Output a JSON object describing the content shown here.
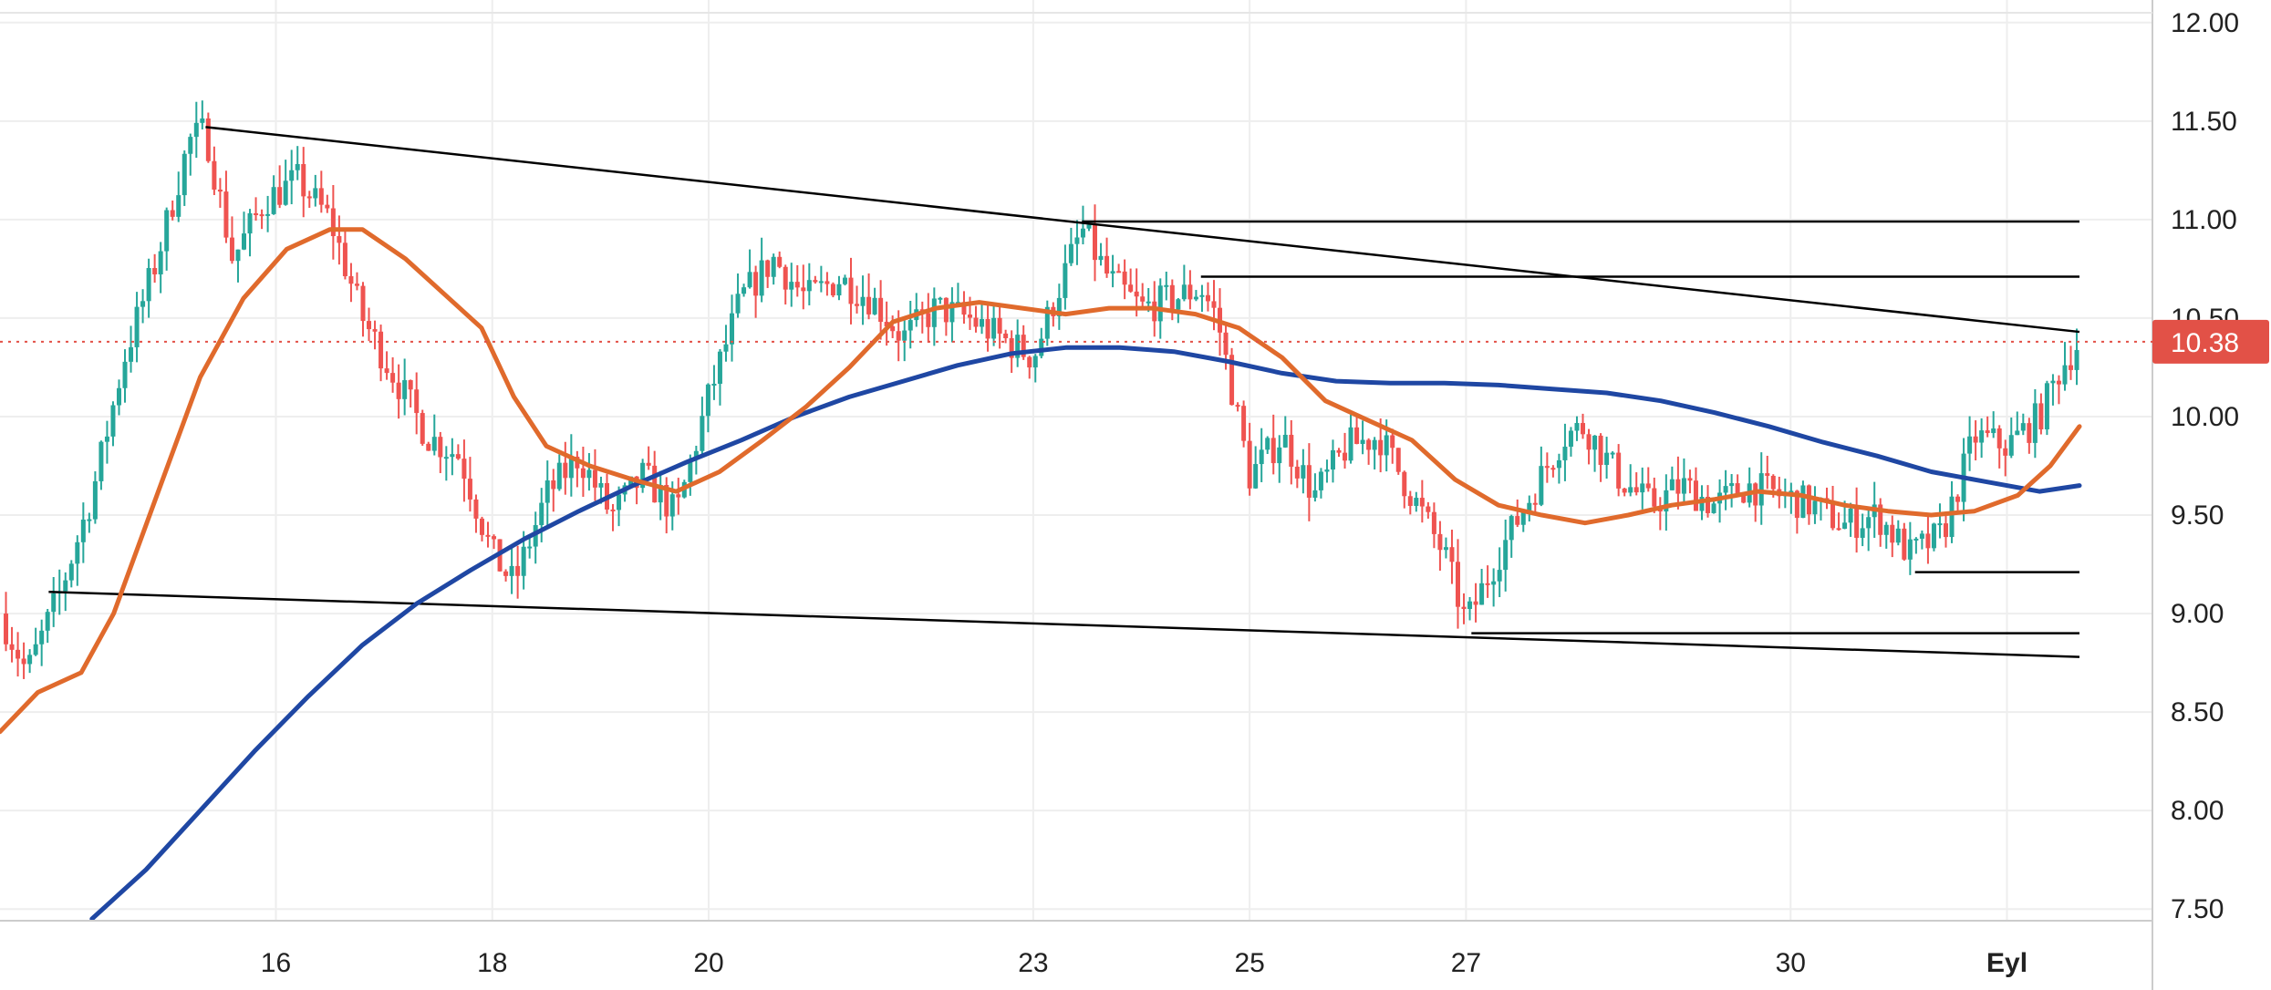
{
  "chart_data": {
    "type": "candlestick",
    "title": "",
    "xlabel": "",
    "ylabel": "",
    "ylim": [
      7.45,
      12.05
    ],
    "grid": true,
    "legend": "none",
    "y_ticks": [
      "7.50",
      "8.00",
      "8.50",
      "9.00",
      "9.50",
      "10.00",
      "10.50",
      "11.00",
      "11.50",
      "12.00"
    ],
    "x_ticks": [
      {
        "label": "16",
        "day": 16
      },
      {
        "label": "18",
        "day": 18
      },
      {
        "label": "20",
        "day": 20
      },
      {
        "label": "23",
        "day": 23
      },
      {
        "label": "25",
        "day": 25
      },
      {
        "label": "27",
        "day": 27
      },
      {
        "label": "30",
        "day": 30
      },
      {
        "label": "Eyl",
        "day": 32,
        "bold": true
      }
    ],
    "x_range_days": [
      13.45,
      32.67
    ],
    "last_price": {
      "value": 10.38,
      "label": "10.38"
    },
    "colors": {
      "up": "#26a69a",
      "down": "#ef5350",
      "ma_fast": "#e06a2c",
      "ma_slow": "#1f47a3",
      "trendline": "#000000",
      "price_tag": "#e25147",
      "grid": "#eeeeee"
    },
    "price_path": [
      [
        13.45,
        9.0
      ],
      [
        13.7,
        8.7
      ],
      [
        14.0,
        9.1
      ],
      [
        14.3,
        9.6
      ],
      [
        14.6,
        10.3
      ],
      [
        14.9,
        10.8
      ],
      [
        15.2,
        11.4
      ],
      [
        15.35,
        11.45
      ],
      [
        15.6,
        10.8
      ],
      [
        15.9,
        11.1
      ],
      [
        16.2,
        11.2
      ],
      [
        16.5,
        11.0
      ],
      [
        16.8,
        10.5
      ],
      [
        17.1,
        10.2
      ],
      [
        17.4,
        9.9
      ],
      [
        17.7,
        9.8
      ],
      [
        18.0,
        9.3
      ],
      [
        18.2,
        9.15
      ],
      [
        18.5,
        9.6
      ],
      [
        18.8,
        9.8
      ],
      [
        19.1,
        9.5
      ],
      [
        19.4,
        9.7
      ],
      [
        19.7,
        9.5
      ],
      [
        20.0,
        10.1
      ],
      [
        20.3,
        10.6
      ],
      [
        20.6,
        10.8
      ],
      [
        20.9,
        10.6
      ],
      [
        21.2,
        10.7
      ],
      [
        21.5,
        10.6
      ],
      [
        21.8,
        10.4
      ],
      [
        22.1,
        10.55
      ],
      [
        22.4,
        10.5
      ],
      [
        22.7,
        10.4
      ],
      [
        23.0,
        10.3
      ],
      [
        23.2,
        10.6
      ],
      [
        23.45,
        10.95
      ],
      [
        23.7,
        10.7
      ],
      [
        24.0,
        10.55
      ],
      [
        24.3,
        10.6
      ],
      [
        24.55,
        10.65
      ],
      [
        24.7,
        10.5
      ],
      [
        25.0,
        9.7
      ],
      [
        25.3,
        9.9
      ],
      [
        25.6,
        9.6
      ],
      [
        25.9,
        9.85
      ],
      [
        26.2,
        9.9
      ],
      [
        26.5,
        9.6
      ],
      [
        26.8,
        9.3
      ],
      [
        27.0,
        8.95
      ],
      [
        27.3,
        9.3
      ],
      [
        27.6,
        9.6
      ],
      [
        27.9,
        9.9
      ],
      [
        28.1,
        9.95
      ],
      [
        28.4,
        9.7
      ],
      [
        28.7,
        9.55
      ],
      [
        29.0,
        9.65
      ],
      [
        29.3,
        9.55
      ],
      [
        29.6,
        9.65
      ],
      [
        29.9,
        9.6
      ],
      [
        30.2,
        9.55
      ],
      [
        30.5,
        9.45
      ],
      [
        30.8,
        9.5
      ],
      [
        31.1,
        9.3
      ],
      [
        31.4,
        9.4
      ],
      [
        31.7,
        9.9
      ],
      [
        32.0,
        9.85
      ],
      [
        32.3,
        10.0
      ],
      [
        32.5,
        10.25
      ],
      [
        32.67,
        10.38
      ]
    ],
    "ma_fast": [
      [
        13.45,
        8.4
      ],
      [
        13.8,
        8.6
      ],
      [
        14.2,
        8.7
      ],
      [
        14.5,
        9.0
      ],
      [
        14.9,
        9.6
      ],
      [
        15.3,
        10.2
      ],
      [
        15.7,
        10.6
      ],
      [
        16.1,
        10.85
      ],
      [
        16.5,
        10.95
      ],
      [
        16.8,
        10.95
      ],
      [
        17.2,
        10.8
      ],
      [
        17.6,
        10.6
      ],
      [
        17.9,
        10.45
      ],
      [
        18.2,
        10.1
      ],
      [
        18.5,
        9.85
      ],
      [
        18.9,
        9.75
      ],
      [
        19.3,
        9.68
      ],
      [
        19.7,
        9.62
      ],
      [
        20.1,
        9.72
      ],
      [
        20.5,
        9.88
      ],
      [
        20.9,
        10.05
      ],
      [
        21.3,
        10.25
      ],
      [
        21.7,
        10.48
      ],
      [
        22.1,
        10.55
      ],
      [
        22.5,
        10.58
      ],
      [
        22.9,
        10.55
      ],
      [
        23.3,
        10.52
      ],
      [
        23.7,
        10.55
      ],
      [
        24.1,
        10.55
      ],
      [
        24.5,
        10.52
      ],
      [
        24.9,
        10.45
      ],
      [
        25.3,
        10.3
      ],
      [
        25.7,
        10.08
      ],
      [
        26.1,
        9.98
      ],
      [
        26.5,
        9.88
      ],
      [
        26.9,
        9.68
      ],
      [
        27.3,
        9.55
      ],
      [
        27.7,
        9.5
      ],
      [
        28.1,
        9.46
      ],
      [
        28.5,
        9.5
      ],
      [
        28.9,
        9.55
      ],
      [
        29.3,
        9.58
      ],
      [
        29.7,
        9.62
      ],
      [
        30.1,
        9.6
      ],
      [
        30.5,
        9.55
      ],
      [
        30.9,
        9.52
      ],
      [
        31.3,
        9.5
      ],
      [
        31.7,
        9.52
      ],
      [
        32.1,
        9.6
      ],
      [
        32.4,
        9.75
      ],
      [
        32.67,
        9.95
      ]
    ],
    "ma_slow": [
      [
        14.3,
        7.45
      ],
      [
        14.8,
        7.7
      ],
      [
        15.3,
        8.0
      ],
      [
        15.8,
        8.3
      ],
      [
        16.3,
        8.58
      ],
      [
        16.8,
        8.84
      ],
      [
        17.3,
        9.05
      ],
      [
        17.8,
        9.22
      ],
      [
        18.3,
        9.38
      ],
      [
        18.8,
        9.52
      ],
      [
        19.3,
        9.65
      ],
      [
        19.8,
        9.77
      ],
      [
        20.3,
        9.88
      ],
      [
        20.8,
        10.0
      ],
      [
        21.3,
        10.1
      ],
      [
        21.8,
        10.18
      ],
      [
        22.3,
        10.26
      ],
      [
        22.8,
        10.32
      ],
      [
        23.3,
        10.35
      ],
      [
        23.8,
        10.35
      ],
      [
        24.3,
        10.33
      ],
      [
        24.8,
        10.28
      ],
      [
        25.3,
        10.22
      ],
      [
        25.8,
        10.18
      ],
      [
        26.3,
        10.17
      ],
      [
        26.8,
        10.17
      ],
      [
        27.3,
        10.16
      ],
      [
        27.8,
        10.14
      ],
      [
        28.3,
        10.12
      ],
      [
        28.8,
        10.08
      ],
      [
        29.3,
        10.02
      ],
      [
        29.8,
        9.95
      ],
      [
        30.3,
        9.87
      ],
      [
        30.8,
        9.8
      ],
      [
        31.3,
        9.72
      ],
      [
        31.8,
        9.67
      ],
      [
        32.3,
        9.62
      ],
      [
        32.67,
        9.65
      ]
    ],
    "trendlines": [
      {
        "from": [
          15.35,
          11.47
        ],
        "to": [
          32.67,
          10.43
        ]
      },
      {
        "from": [
          13.9,
          9.11
        ],
        "to": [
          32.67,
          8.78
        ]
      },
      {
        "from": [
          23.45,
          10.99
        ],
        "to": [
          32.67,
          10.99
        ]
      },
      {
        "from": [
          24.55,
          10.71
        ],
        "to": [
          32.67,
          10.71
        ]
      },
      {
        "from": [
          31.15,
          9.21
        ],
        "to": [
          32.67,
          9.21
        ]
      },
      {
        "from": [
          27.05,
          8.9
        ],
        "to": [
          32.67,
          8.9
        ]
      }
    ]
  }
}
